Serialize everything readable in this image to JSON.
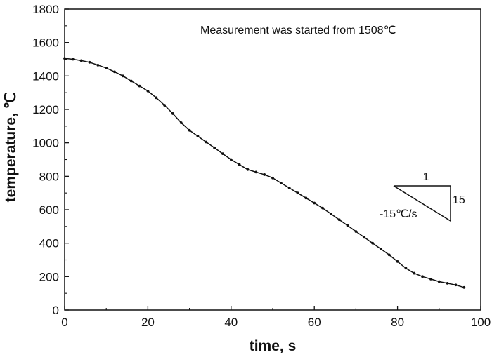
{
  "chart_data": {
    "type": "line",
    "xlabel": "time, s",
    "ylabel": "temperature, ℃",
    "xlim": [
      0,
      100
    ],
    "ylim": [
      0,
      1800
    ],
    "xticks": [
      0,
      20,
      40,
      60,
      80,
      100
    ],
    "yticks": [
      0,
      200,
      400,
      600,
      800,
      1000,
      1200,
      1400,
      1600,
      1800
    ],
    "grid": false,
    "annotation": "Measurement was started from 1508℃",
    "slope_triangle": {
      "run_label": "1",
      "rise_label": "15",
      "slope_label": "-15℃/s"
    },
    "series": [
      {
        "marker": "dot",
        "x": [
          0,
          2,
          4,
          6,
          8,
          10,
          12,
          14,
          16,
          18,
          20,
          22,
          24,
          26,
          28,
          30,
          32,
          34,
          36,
          38,
          40,
          42,
          44,
          46,
          48,
          50,
          52,
          54,
          56,
          58,
          60,
          62,
          64,
          66,
          68,
          70,
          72,
          74,
          76,
          78,
          80,
          82,
          84,
          86,
          88,
          90,
          92,
          94,
          96
        ],
        "y": [
          1505,
          1500,
          1492,
          1482,
          1465,
          1448,
          1425,
          1400,
          1370,
          1340,
          1310,
          1270,
          1225,
          1175,
          1120,
          1075,
          1040,
          1005,
          970,
          935,
          900,
          870,
          840,
          825,
          810,
          790,
          760,
          730,
          700,
          670,
          640,
          610,
          575,
          540,
          505,
          470,
          435,
          400,
          365,
          330,
          290,
          250,
          220,
          200,
          185,
          170,
          160,
          150,
          135
        ]
      }
    ]
  }
}
